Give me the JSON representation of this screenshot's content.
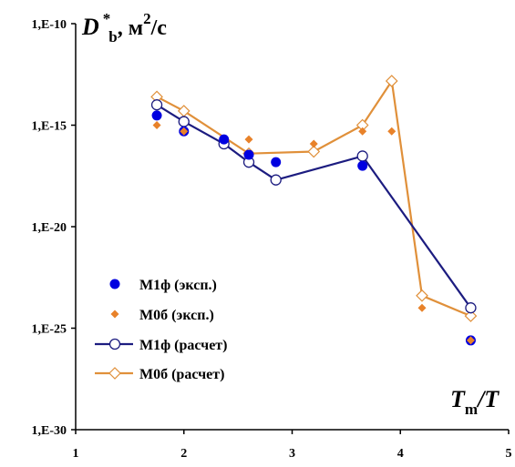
{
  "chart_data": {
    "type": "scatter",
    "x_axis": {
      "min": 1,
      "max": 5,
      "ticks": [
        1,
        2,
        3,
        4,
        5
      ],
      "tick_labels": [
        "1",
        "2",
        "3",
        "4",
        "5"
      ]
    },
    "y_axis": {
      "scale": "log",
      "min_exp": -30,
      "max_exp": -10,
      "ticks_exp": [
        -30,
        -25,
        -20,
        -15,
        -10
      ],
      "tick_labels": [
        "1,E-30",
        "1,E-25",
        "1,E-20",
        "1,E-15",
        "1,E-10"
      ]
    },
    "ylabel": {
      "symbol": "D",
      "superscript": "*",
      "subscript": "b",
      "unit_prefix": ", м",
      "unit_power": "2",
      "unit_suffix": "/с"
    },
    "xlabel": {
      "symbol": "T",
      "subscript": "m",
      "tail": "/T"
    },
    "colors": {
      "blue": "#0000e0",
      "navy": "#1c1c80",
      "orange": "#e8822a",
      "orange_line": "#e0903a"
    },
    "series": [
      {
        "name": "М1ф (эксп.)",
        "style": "marker",
        "marker": "circle-filled",
        "color": "#0000e0",
        "x": [
          1.75,
          2.0,
          2.37,
          2.6,
          2.85,
          3.65,
          4.65
        ],
        "y": [
          3e-15,
          5e-16,
          2e-16,
          3.5e-17,
          1.5e-17,
          1e-17,
          2.5e-26
        ]
      },
      {
        "name": "М0б (эксп.)",
        "style": "marker",
        "marker": "diamond-filled",
        "color": "#e8822a",
        "x": [
          1.75,
          2.0,
          2.6,
          3.2,
          3.65,
          3.92,
          4.2,
          4.65
        ],
        "y": [
          1e-15,
          5e-16,
          2e-16,
          1.2e-16,
          5e-16,
          5e-16,
          1e-24,
          2.5e-26
        ]
      },
      {
        "name": "М1ф (расчет)",
        "style": "line-marker",
        "marker": "circle-open",
        "color": "#1c1c80",
        "x": [
          1.75,
          2.0,
          2.37,
          2.6,
          2.85,
          3.65,
          4.65
        ],
        "y": [
          1e-14,
          1.5e-15,
          1.2e-16,
          1.5e-17,
          2e-18,
          3e-17,
          1e-24
        ]
      },
      {
        "name": "М0б (расчет)",
        "style": "line-marker",
        "marker": "diamond-open",
        "color": "#e0903a",
        "x": [
          1.75,
          2.0,
          2.6,
          3.2,
          3.65,
          3.92,
          4.2,
          4.65
        ],
        "y": [
          2.5e-14,
          5e-15,
          4e-17,
          5e-17,
          1e-15,
          1.5e-13,
          4e-24,
          4e-25
        ]
      }
    ],
    "legend": {
      "position": "lower-left"
    },
    "grid": false
  }
}
